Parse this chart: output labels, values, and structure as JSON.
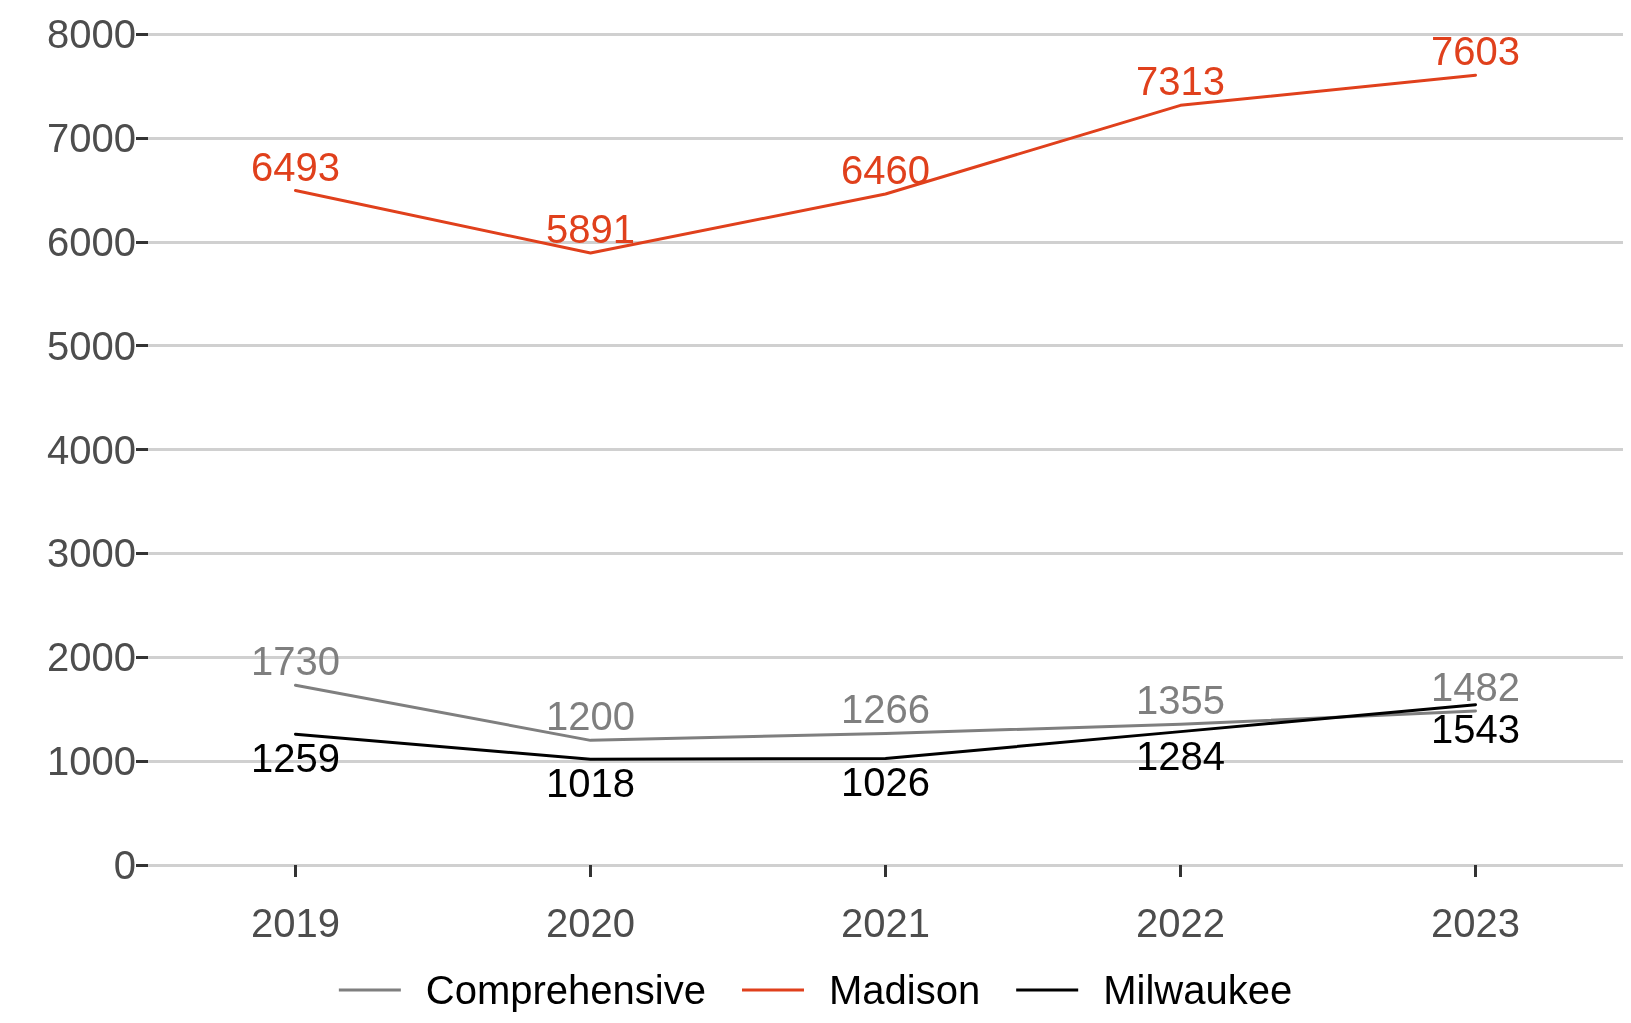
{
  "chart_data": {
    "type": "line",
    "categories": [
      "2019",
      "2020",
      "2021",
      "2022",
      "2023"
    ],
    "series": [
      {
        "name": "Comprehensive",
        "color": "#7f7f7f",
        "values": [
          1730,
          1200,
          1266,
          1355,
          1482
        ]
      },
      {
        "name": "Madison",
        "color": "#e0401c",
        "values": [
          6493,
          5891,
          6460,
          7313,
          7603
        ]
      },
      {
        "name": "Milwaukee",
        "color": "#000000",
        "values": [
          1259,
          1018,
          1026,
          1284,
          1543
        ]
      }
    ],
    "ylim": [
      0,
      8000
    ],
    "yticks": [
      0,
      1000,
      2000,
      3000,
      4000,
      5000,
      6000,
      7000,
      8000
    ],
    "grid": "y",
    "legend": "bottom",
    "data_labels": true,
    "marker": "none",
    "line_style": "solid"
  }
}
